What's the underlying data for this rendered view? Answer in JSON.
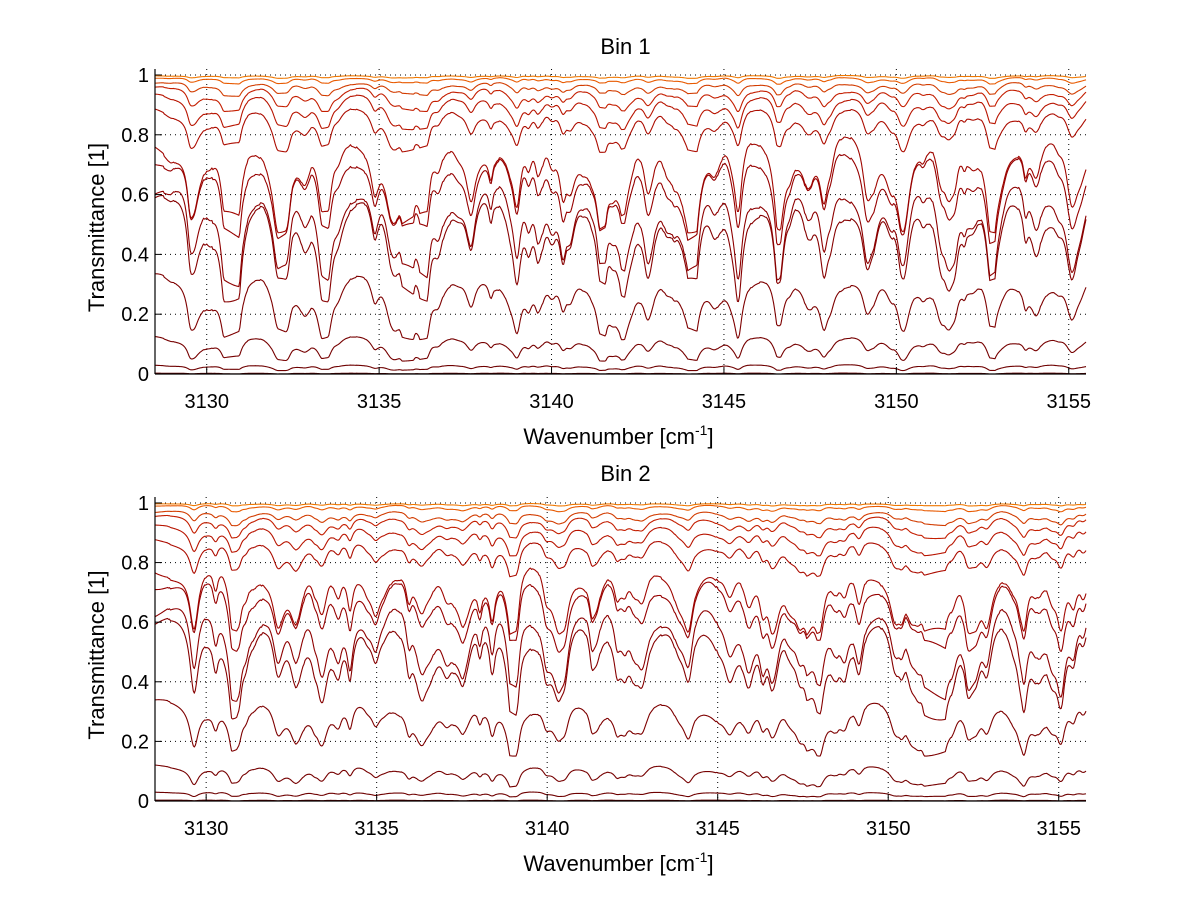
{
  "chart_data": [
    {
      "type": "line",
      "title": "Bin 1",
      "xlabel_base": "Wavenumber [cm",
      "xlabel_sup": "-1",
      "xlabel_end": "]",
      "ylabel": "Transmittance [1]",
      "xlim": [
        3128.5,
        3155.5
      ],
      "ylim": [
        0,
        1.02
      ],
      "xticks": [
        3130,
        3135,
        3140,
        3145,
        3150,
        3155
      ],
      "yticks": [
        0,
        0.2,
        0.4,
        0.6,
        0.8,
        1
      ],
      "ytick_labels": [
        "0",
        "0.2",
        "0.4",
        "0.6",
        "0.8",
        "1"
      ],
      "grid": true,
      "series": [
        {
          "color": "#f07800",
          "baseline": 0.998,
          "depth": 0.006
        },
        {
          "color": "#e85a00",
          "baseline": 0.992,
          "depth": 0.015
        },
        {
          "color": "#d23c00",
          "baseline": 0.975,
          "depth": 0.03
        },
        {
          "color": "#c41e00",
          "baseline": 0.955,
          "depth": 0.05
        },
        {
          "color": "#b81400",
          "baseline": 0.925,
          "depth": 0.07
        },
        {
          "color": "#ac0c00",
          "baseline": 0.88,
          "depth": 0.09
        },
        {
          "color": "#a00600",
          "baseline": 0.78,
          "depth": 0.2
        },
        {
          "color": "#960000",
          "baseline": 0.74,
          "depth": 0.2
        },
        {
          "color": "#8e0000",
          "baseline": 0.63,
          "depth": 0.22
        },
        {
          "color": "#860000",
          "baseline": 0.58,
          "depth": 0.22
        },
        {
          "color": "#7e0000",
          "baseline": 0.315,
          "depth": 0.13
        },
        {
          "color": "#760000",
          "baseline": 0.12,
          "depth": 0.05
        },
        {
          "color": "#6e0000",
          "baseline": 0.03,
          "depth": 0.012
        },
        {
          "color": "#660000",
          "baseline": 0.003,
          "depth": 0.002
        }
      ]
    },
    {
      "type": "line",
      "title": "Bin 2",
      "xlabel_base": "Wavenumber [cm",
      "xlabel_sup": "-1",
      "xlabel_end": "]",
      "ylabel": "Transmittance [1]",
      "xlim": [
        3128.5,
        3155.8
      ],
      "ylim": [
        0,
        1.02
      ],
      "xticks": [
        3130,
        3135,
        3140,
        3145,
        3150,
        3155
      ],
      "yticks": [
        0,
        0.2,
        0.4,
        0.6,
        0.8,
        1
      ],
      "ytick_labels": [
        "0",
        "0.2",
        "0.4",
        "0.6",
        "0.8",
        "1"
      ],
      "grid": true,
      "series": [
        {
          "color": "#f07800",
          "baseline": 0.998,
          "depth": 0.006
        },
        {
          "color": "#e85a00",
          "baseline": 0.992,
          "depth": 0.015
        },
        {
          "color": "#d23c00",
          "baseline": 0.97,
          "depth": 0.03
        },
        {
          "color": "#c41e00",
          "baseline": 0.95,
          "depth": 0.045
        },
        {
          "color": "#b81400",
          "baseline": 0.915,
          "depth": 0.06
        },
        {
          "color": "#ac0c00",
          "baseline": 0.87,
          "depth": 0.08
        },
        {
          "color": "#a00600",
          "baseline": 0.78,
          "depth": 0.17
        },
        {
          "color": "#960000",
          "baseline": 0.74,
          "depth": 0.17
        },
        {
          "color": "#8e0000",
          "baseline": 0.64,
          "depth": 0.2
        },
        {
          "color": "#860000",
          "baseline": 0.58,
          "depth": 0.2
        },
        {
          "color": "#7e0000",
          "baseline": 0.32,
          "depth": 0.11
        },
        {
          "color": "#760000",
          "baseline": 0.115,
          "depth": 0.045
        },
        {
          "color": "#6e0000",
          "baseline": 0.03,
          "depth": 0.012
        },
        {
          "color": "#660000",
          "baseline": 0.003,
          "depth": 0.002
        }
      ]
    }
  ]
}
